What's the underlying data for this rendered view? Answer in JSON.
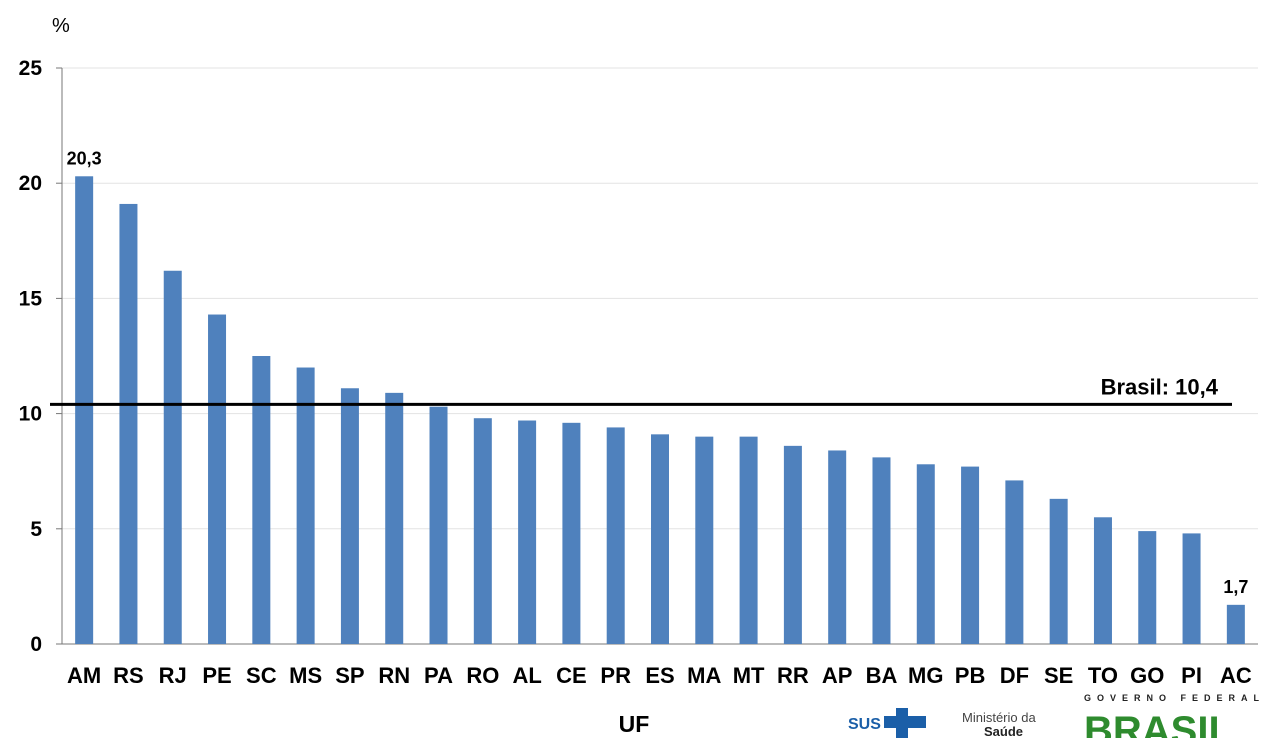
{
  "chart_data": {
    "type": "bar",
    "ylabel": "%",
    "xlabel": "UF",
    "ylim": [
      0,
      25
    ],
    "yticks": [
      0,
      5,
      10,
      15,
      20,
      25
    ],
    "grid": true,
    "bar_color": "#4f81bd",
    "categories": [
      "AM",
      "RS",
      "RJ",
      "PE",
      "SC",
      "MS",
      "SP",
      "RN",
      "PA",
      "RO",
      "AL",
      "CE",
      "PR",
      "ES",
      "MA",
      "MT",
      "RR",
      "AP",
      "BA",
      "MG",
      "PB",
      "DF",
      "SE",
      "TO",
      "GO",
      "PI",
      "AC"
    ],
    "values": [
      20.3,
      19.1,
      16.2,
      14.3,
      12.5,
      12.0,
      11.1,
      10.9,
      10.3,
      9.8,
      9.7,
      9.6,
      9.4,
      9.1,
      9.0,
      9.0,
      8.6,
      8.4,
      8.1,
      7.8,
      7.7,
      7.1,
      6.3,
      5.5,
      4.9,
      4.8,
      1.7
    ],
    "data_labels": [
      {
        "category": "AM",
        "text": "20,3"
      },
      {
        "category": "AC",
        "text": "1,7"
      }
    ],
    "reference_line": {
      "label": "Brasil: 10,4",
      "value": 10.4,
      "color": "#000000"
    }
  },
  "logos": {
    "sus": "SUS",
    "ministerio_line1": "Ministério da",
    "ministerio_line2": "Saúde",
    "governo": "GOVERNO FEDERAL",
    "brasil": "BRASIL",
    "colors": {
      "sus": "#1b5fa8",
      "brasil_green": "#2e8b2e",
      "brasil_yellow": "#f2c200",
      "brasil_blue": "#1b5fa8"
    }
  }
}
